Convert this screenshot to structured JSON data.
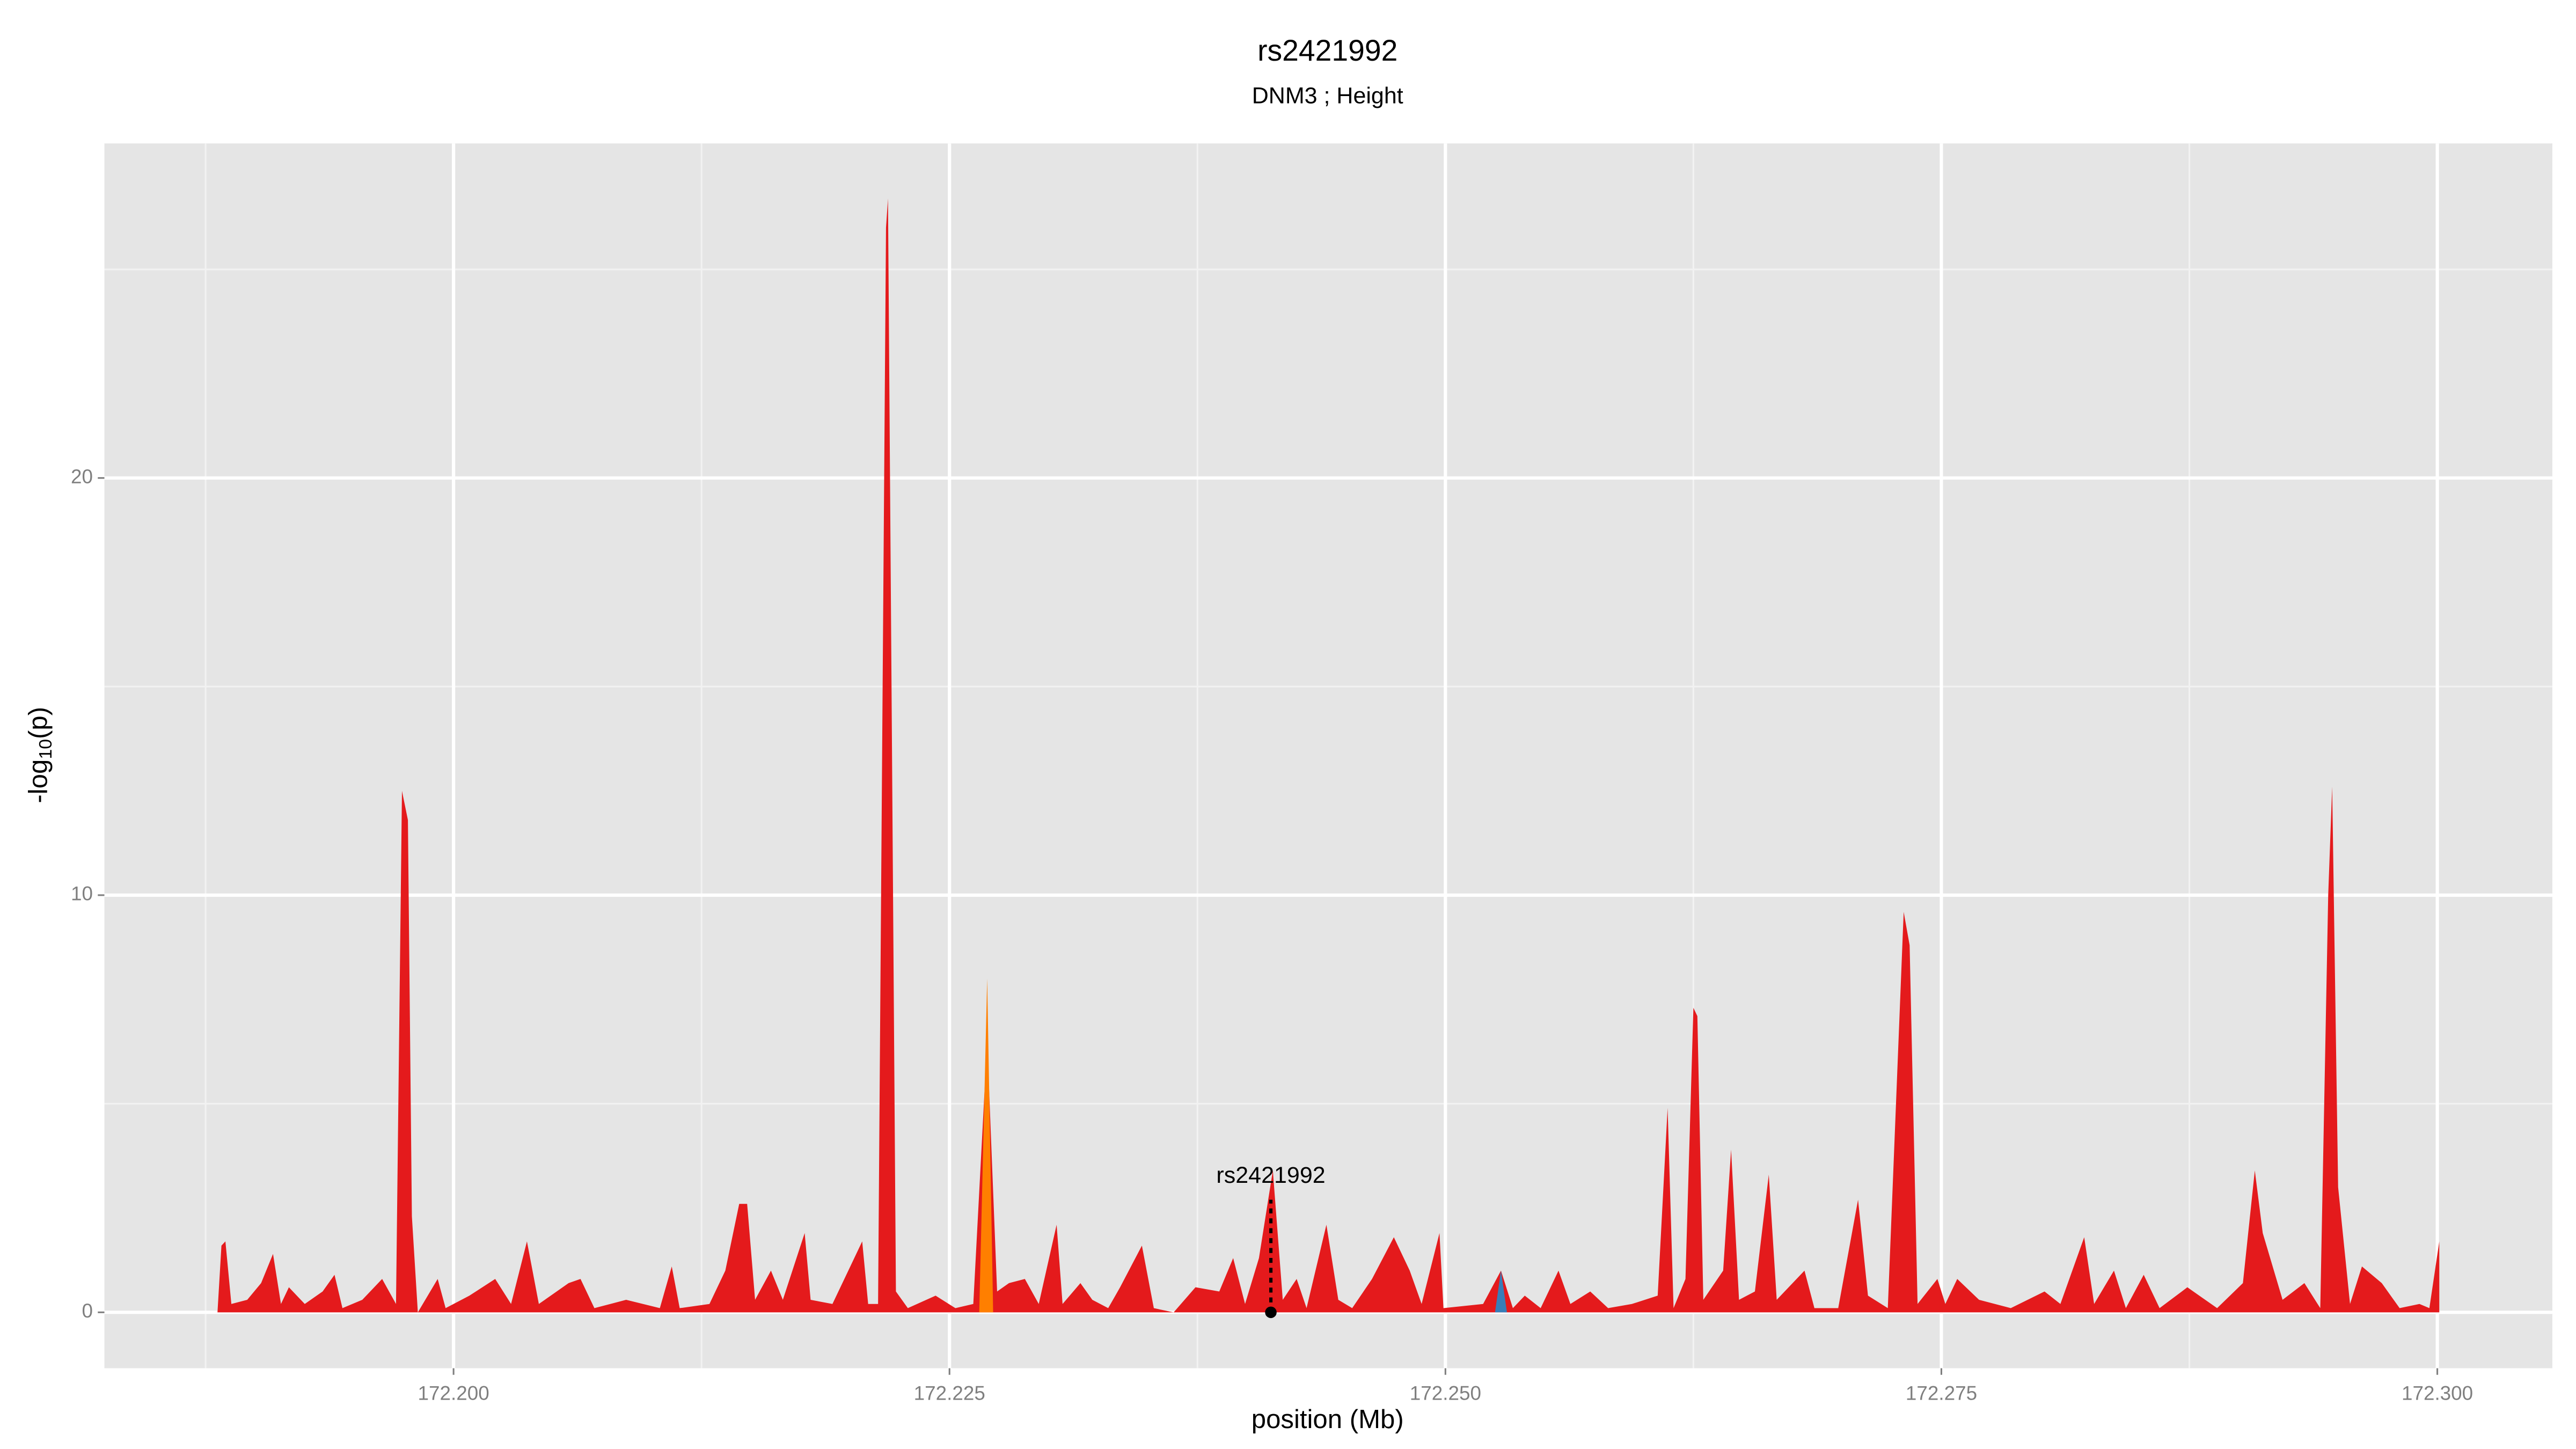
{
  "chart_data": {
    "type": "area",
    "title": "rs2421992",
    "subtitle": "DNM3 ; Height",
    "xlabel": "position (Mb)",
    "ylabel": [
      "-log",
      "10",
      "(p)"
    ],
    "xlim": [
      172.1824,
      172.3058
    ],
    "ylim": [
      -1.34,
      28.02
    ],
    "xticks": [
      {
        "value": 172.2,
        "label": "172.200"
      },
      {
        "value": 172.225,
        "label": "172.225"
      },
      {
        "value": 172.25,
        "label": "172.250"
      },
      {
        "value": 172.275,
        "label": "172.275"
      },
      {
        "value": 172.3,
        "label": "172.300"
      }
    ],
    "yticks": [
      0,
      10,
      20
    ],
    "grid": true,
    "series": [
      {
        "color": "#e41a1c",
        "x": [
          172.1881,
          172.1883,
          172.1885,
          172.1888,
          172.1896,
          172.1903,
          172.1909,
          172.1913,
          172.1917,
          172.1925,
          172.1934,
          172.194,
          172.1944,
          172.1954,
          172.1964,
          172.1971,
          172.1974,
          172.1977,
          172.1979,
          172.1982,
          172.1992,
          172.1996,
          172.2008,
          172.2021,
          172.2029,
          172.2037,
          172.2043,
          172.2058,
          172.2064,
          172.2071,
          172.2087,
          172.2104,
          172.211,
          172.2114,
          172.2129,
          172.2137,
          172.2144,
          172.2148,
          172.2152,
          172.216,
          172.2166,
          172.2177,
          172.218,
          172.2191,
          172.2199,
          172.2206,
          172.2209,
          172.2214,
          172.2218,
          172.2219,
          172.2223,
          172.2229,
          172.2243,
          172.2253,
          172.2262,
          172.2269,
          172.2274,
          172.228,
          172.2288,
          172.2295,
          172.2304,
          172.2307,
          172.2316,
          172.2322,
          172.233,
          172.2336,
          172.2347,
          172.2353,
          172.2363,
          172.2374,
          172.2386,
          172.2393,
          172.2399,
          172.2406,
          172.2413,
          172.2418,
          172.2425,
          172.243,
          172.244,
          172.2446,
          172.2453,
          172.2463,
          172.2474,
          172.2482,
          172.2488,
          172.2497,
          172.2499,
          172.2519,
          172.2528,
          172.2534,
          172.254,
          172.2548,
          172.2557,
          172.2563,
          172.2573,
          172.2582,
          172.2594,
          172.2607,
          172.2612,
          172.2615,
          172.2621,
          172.2625,
          172.2627,
          172.263,
          172.264,
          172.2644,
          172.2648,
          172.2656,
          172.2663,
          172.2667,
          172.2681,
          172.2686,
          172.2698,
          172.2708,
          172.2713,
          172.2723,
          172.2731,
          172.2734,
          172.2738,
          172.2748,
          172.2752,
          172.2758,
          172.2769,
          172.2785,
          172.2802,
          172.281,
          172.2822,
          172.2827,
          172.2837,
          172.2843,
          172.2852,
          172.286,
          172.2874,
          172.2889,
          172.2902,
          172.2908,
          172.2912,
          172.2922,
          172.2933,
          172.2941,
          172.2945,
          172.2947,
          172.295,
          172.2956,
          172.2962,
          172.2972,
          172.2981,
          172.2991,
          172.2996,
          172.3001
        ],
        "values": [
          0,
          1.6,
          1.7,
          0.2,
          0.3,
          0.7,
          1.4,
          0.2,
          0.6,
          0.2,
          0.5,
          0.9,
          0.1,
          0.3,
          0.8,
          0.2,
          12.5,
          11.8,
          2.3,
          0,
          0.8,
          0.1,
          0.4,
          0.8,
          0.2,
          1.7,
          0.2,
          0.7,
          0.8,
          0.1,
          0.3,
          0.1,
          1.1,
          0.1,
          0.2,
          1,
          2.6,
          2.6,
          0.3,
          1,
          0.3,
          1.9,
          0.3,
          0.2,
          1,
          1.7,
          0.2,
          0.2,
          26,
          26.7,
          0.5,
          0.1,
          0.4,
          0.1,
          0.2,
          6.5,
          0.5,
          0.7,
          0.8,
          0.2,
          2.1,
          0.2,
          0.7,
          0.3,
          0.1,
          0.6,
          1.6,
          0.1,
          0,
          0.6,
          0.5,
          1.3,
          0.2,
          1.3,
          3.4,
          0.3,
          0.8,
          0.1,
          2.1,
          0.3,
          0.1,
          0.8,
          1.8,
          1,
          0.2,
          1.9,
          0.1,
          0.2,
          1,
          0.1,
          0.4,
          0.1,
          1,
          0.2,
          0.5,
          0.1,
          0.2,
          0.4,
          4.9,
          0.1,
          0.8,
          7.3,
          7.1,
          0.3,
          1,
          3.9,
          0.3,
          0.5,
          3.3,
          0.3,
          1,
          0.1,
          0.1,
          2.7,
          0.4,
          0.1,
          9.6,
          8.8,
          0.2,
          0.8,
          0.2,
          0.8,
          0.3,
          0.1,
          0.5,
          0.2,
          1.8,
          0.2,
          1,
          0.1,
          0.9,
          0.1,
          0.6,
          0.1,
          0.7,
          3.4,
          1.9,
          0.3,
          0.7,
          0.1,
          10,
          12.6,
          3,
          0.2,
          1.1,
          0.7,
          0.1,
          0.2,
          0.1,
          1.7
        ]
      },
      {
        "color": "#ff7f00",
        "x": [
          172.2265,
          172.2269,
          172.2272
        ],
        "values": [
          0,
          8,
          0
        ]
      },
      {
        "color": "#377eb8",
        "x": [
          172.2525,
          172.2528,
          172.2531
        ],
        "values": [
          0,
          1,
          0
        ]
      }
    ],
    "annotation": {
      "text": "rs2421992",
      "x": 172.2412,
      "y": 0,
      "line_top": 2.7
    }
  }
}
